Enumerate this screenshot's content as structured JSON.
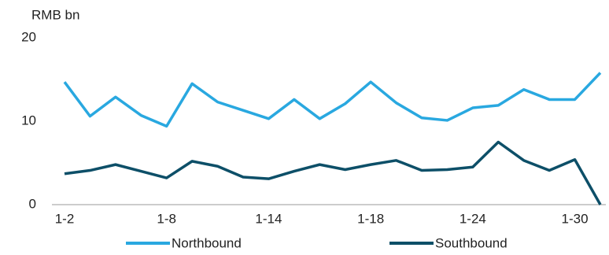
{
  "chart_data": {
    "type": "line",
    "y_label": "RMB bn",
    "categories": [
      "1-2",
      null,
      null,
      null,
      "1-8",
      null,
      null,
      null,
      "1-14",
      null,
      null,
      null,
      "1-18",
      null,
      null,
      null,
      "1-24",
      null,
      null,
      null,
      "1-30",
      null
    ],
    "series": [
      {
        "name": "Northbound",
        "color": "#29a8e0",
        "values": [
          14.7,
          10.6,
          12.9,
          10.7,
          9.4,
          14.5,
          12.3,
          11.3,
          10.3,
          12.6,
          10.3,
          12.1,
          14.7,
          12.2,
          10.4,
          10.1,
          11.6,
          11.9,
          13.8,
          12.6,
          12.6,
          15.8
        ]
      },
      {
        "name": "Southbound",
        "color": "#0d4f68",
        "values": [
          3.7,
          4.1,
          4.8,
          4.0,
          3.2,
          5.2,
          4.6,
          3.3,
          3.1,
          4.0,
          4.8,
          4.2,
          4.8,
          5.3,
          4.1,
          4.2,
          4.5,
          7.5,
          5.3,
          4.1,
          5.4,
          0
        ]
      }
    ],
    "ylim": [
      0,
      20
    ],
    "yticks": [
      0,
      10,
      20
    ],
    "grid": false,
    "legend": "bottom"
  }
}
